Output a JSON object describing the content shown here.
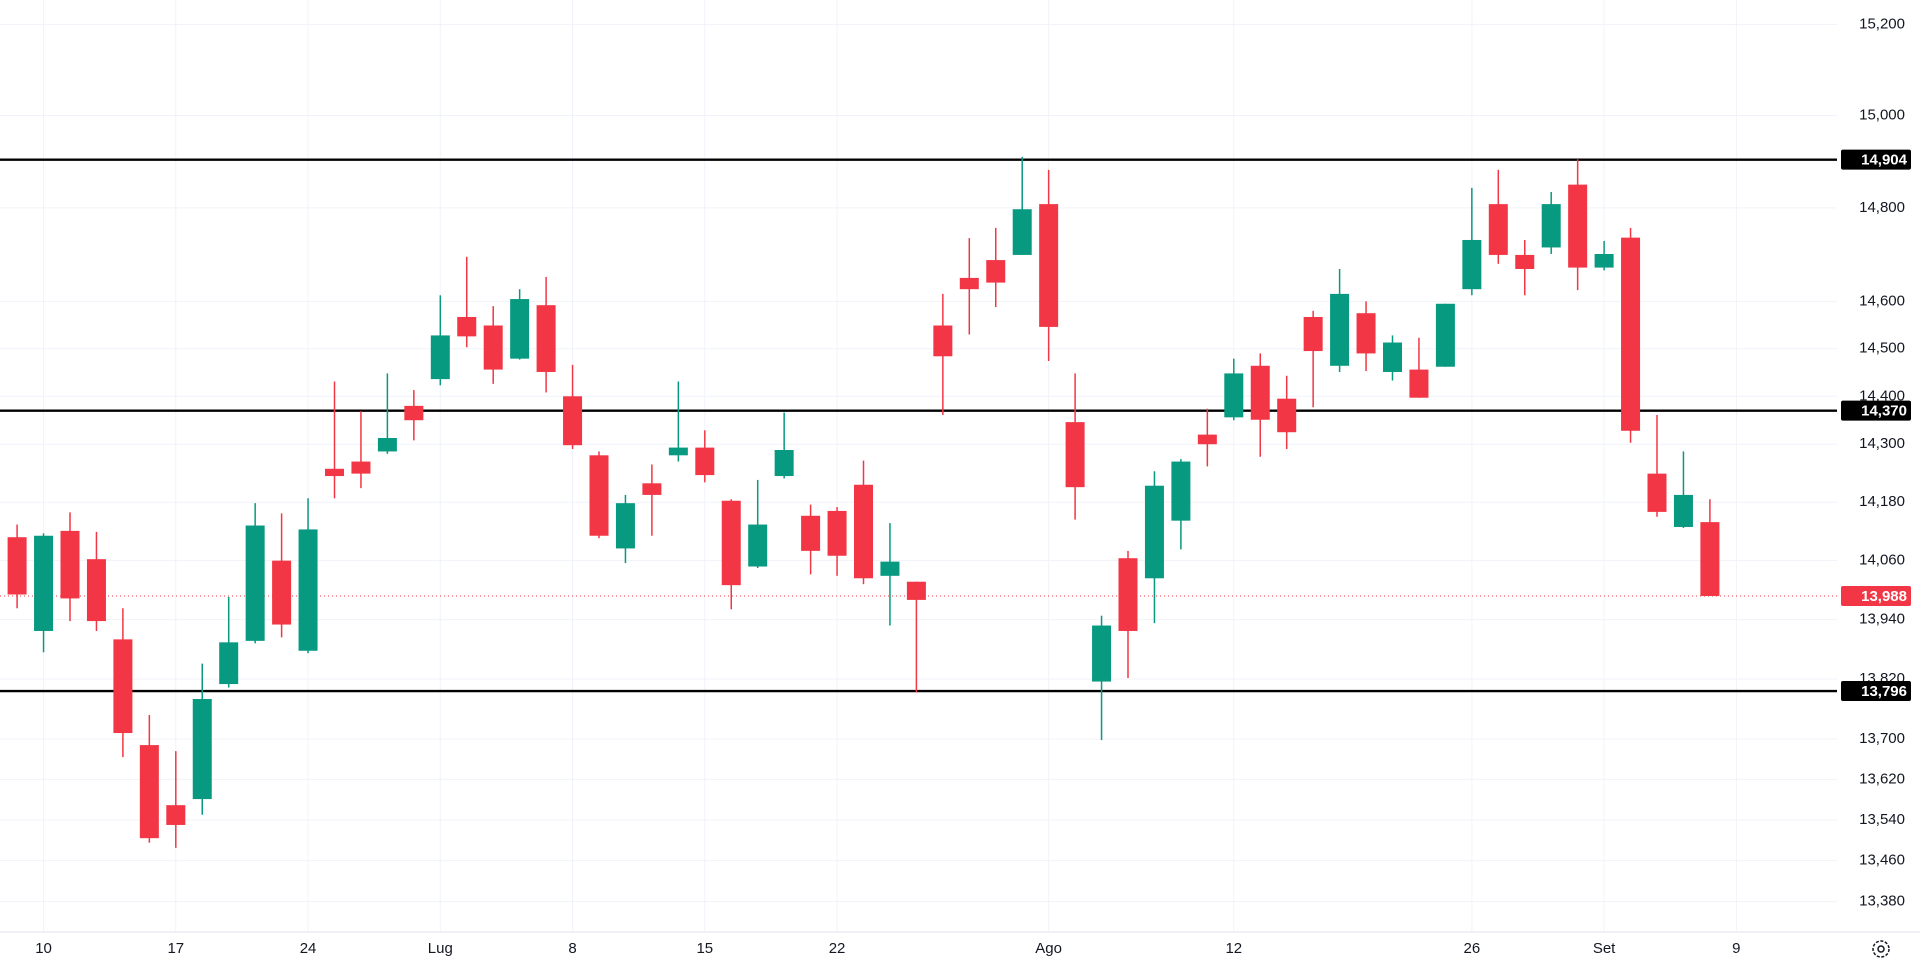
{
  "chart_data": {
    "type": "candlestick",
    "log_scale": true,
    "grid": true,
    "up_color": "#089981",
    "down_color": "#f23645",
    "level_color": "#000000",
    "categories": [
      null,
      "10",
      null,
      null,
      null,
      null,
      "17",
      null,
      null,
      null,
      null,
      "24",
      null,
      null,
      null,
      null,
      "Lug",
      null,
      null,
      null,
      null,
      "8",
      null,
      null,
      null,
      null,
      "15",
      null,
      null,
      null,
      null,
      "22",
      null,
      null,
      null,
      null,
      null,
      null,
      null,
      "Ago",
      null,
      null,
      null,
      null,
      null,
      null,
      "12",
      null,
      null,
      null,
      null,
      null,
      null,
      null,
      null,
      "26",
      null,
      null,
      null,
      null,
      "Set",
      null,
      null,
      null,
      null,
      "9"
    ],
    "open": [
      14108,
      13917,
      14121,
      14063,
      13900,
      13688,
      13569,
      13581,
      13810,
      13897,
      14060,
      13877,
      14249,
      14264,
      14285,
      14380,
      14436,
      14567,
      14549,
      14479,
      14592,
      14400,
      14277,
      14085,
      14219,
      14277,
      14293,
      14183,
      14048,
      14234,
      14152,
      14162,
      14216,
      14029,
      14017,
      14549,
      14650,
      14688,
      14699,
      14808,
      14346,
      13815,
      14065,
      14024,
      14142,
      14320,
      14356,
      14464,
      14395,
      14567,
      14464,
      14575,
      14451,
      14456,
      14462,
      14626,
      14808,
      14699,
      14715,
      14850,
      14672,
      14736,
      14239,
      14129,
      14139,
      null
    ],
    "high": [
      14134,
      14116,
      14159,
      14119,
      13963,
      13748,
      13676,
      13851,
      13986,
      14178,
      14157,
      14188,
      14431,
      14369,
      14448,
      14413,
      14613,
      14695,
      14590,
      14626,
      14652,
      14466,
      14285,
      14195,
      14258,
      14431,
      14329,
      14186,
      14226,
      14366,
      14175,
      14170,
      14266,
      14137,
      14017,
      14616,
      14735,
      14757,
      14910,
      14882,
      14448,
      13948,
      14080,
      14244,
      14269,
      14374,
      14479,
      14490,
      14443,
      14580,
      14669,
      14600,
      14528,
      14523,
      14595,
      14843,
      14882,
      14731,
      14834,
      14905,
      14729,
      14757,
      14361,
      14285,
      14186,
      null
    ],
    "low": [
      13963,
      13874,
      13937,
      13917,
      13664,
      13495,
      13485,
      13550,
      13803,
      13892,
      13904,
      13872,
      14188,
      14209,
      14280,
      14308,
      14423,
      14503,
      14426,
      14477,
      14408,
      14290,
      14106,
      14055,
      14111,
      14264,
      14221,
      13961,
      14045,
      14229,
      14032,
      14029,
      14012,
      13928,
      13793,
      14361,
      14530,
      14588,
      14699,
      14474,
      14144,
      13698,
      13822,
      13933,
      14083,
      14254,
      14350,
      14274,
      14290,
      14377,
      14451,
      14453,
      14433,
      14397,
      14462,
      14613,
      14680,
      14613,
      14701,
      14624,
      14666,
      14303,
      14150,
      14127,
      13988,
      null
    ],
    "close": [
      13991,
      14111,
      13983,
      13937,
      13712,
      13504,
      13530,
      13780,
      13894,
      14132,
      13930,
      14124,
      14234,
      14239,
      14313,
      14350,
      14528,
      14526,
      14456,
      14605,
      14451,
      14298,
      14111,
      14178,
      14195,
      14293,
      14236,
      14010,
      14134,
      14288,
      14080,
      14070,
      14024,
      14058,
      13980,
      14484,
      14626,
      14640,
      14797,
      14546,
      14211,
      13928,
      13917,
      14214,
      14264,
      14300,
      14448,
      14351,
      14325,
      14495,
      14616,
      14490,
      14513,
      14397,
      14595,
      14731,
      14699,
      14669,
      14808,
      14672,
      14701,
      14328,
      14160,
      14195,
      13988,
      null
    ],
    "ylim": [
      13323,
      15254
    ],
    "yticks": [
      {
        "value": 15200,
        "label": "15,200"
      },
      {
        "value": 15000,
        "label": "15,000"
      },
      {
        "value": 14800,
        "label": "14,800"
      },
      {
        "value": 14600,
        "label": "14,600"
      },
      {
        "value": 14500,
        "label": "14,500"
      },
      {
        "value": 14400,
        "label": "14,400"
      },
      {
        "value": 14300,
        "label": "14,300"
      },
      {
        "value": 14180,
        "label": "14,180"
      },
      {
        "value": 14060,
        "label": "14,060"
      },
      {
        "value": 13940,
        "label": "13,940"
      },
      {
        "value": 13820,
        "label": "13,820"
      },
      {
        "value": 13700,
        "label": "13,700"
      },
      {
        "value": 13620,
        "label": "13,620"
      },
      {
        "value": 13540,
        "label": "13,540"
      },
      {
        "value": 13460,
        "label": "13,460"
      },
      {
        "value": 13380,
        "label": "13,380"
      }
    ],
    "levels": [
      {
        "value": 14904,
        "label": "14,904"
      },
      {
        "value": 14370,
        "label": "14,370"
      },
      {
        "value": 13796,
        "label": "13,796"
      }
    ],
    "last_price": {
      "value": 13988,
      "label": "13,988"
    }
  }
}
